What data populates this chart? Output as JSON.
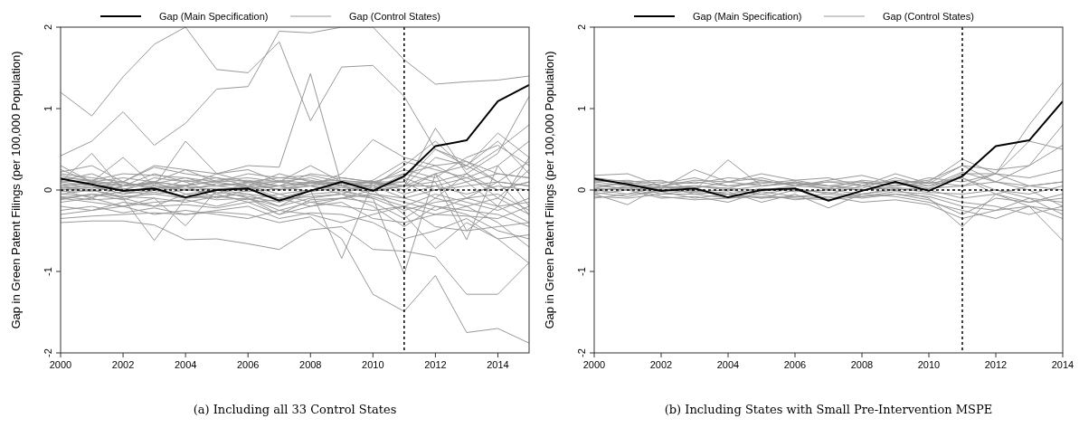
{
  "chart_data": [
    {
      "type": "line",
      "ylabel": "Gap in Green Patent Filings (per 100,000 Population)",
      "annotations": [
        "(a) Including all 33 Control States"
      ],
      "legend": "top",
      "line_style": "solid",
      "x": [
        2000,
        2001,
        2002,
        2003,
        2004,
        2005,
        2006,
        2007,
        2008,
        2009,
        2010,
        2011,
        2012,
        2013,
        2014,
        2015
      ],
      "xlim": [
        2000,
        2015
      ],
      "xticks": [
        2000,
        2002,
        2004,
        2006,
        2008,
        2010,
        2012,
        2014
      ],
      "ylim": [
        -2,
        2
      ],
      "yticks": [
        -2,
        -1,
        0,
        1,
        2
      ],
      "ref_lines": [
        {
          "axis": "x",
          "value": 2011,
          "line_style": "dotted",
          "color": "#000000"
        },
        {
          "axis": "y",
          "value": 0,
          "line_style": "dotted",
          "color": "#000000"
        }
      ],
      "series": [
        {
          "name": "Gap (Control States)",
          "color": "#999999",
          "values": [
            1.2,
            0.91,
            1.39,
            1.79,
            2.0,
            1.48,
            1.44,
            1.82,
            0.85,
            1.51,
            1.53,
            1.15,
            0.5,
            0.35,
            0.2,
            0.15
          ]
        },
        {
          "color": "#999999",
          "values": [
            0.42,
            0.6,
            0.96,
            0.55,
            0.82,
            1.24,
            1.27,
            1.95,
            1.93,
            2.0,
            2.0,
            1.6,
            1.3,
            1.33,
            1.35,
            1.4
          ]
        },
        {
          "color": "#999999",
          "values": [
            0.2,
            0.15,
            0.1,
            0.3,
            0.25,
            0.2,
            0.3,
            0.28,
            1.43,
            0.05,
            0.0,
            0.05,
            0.4,
            0.3,
            0.6,
            0.2
          ]
        },
        {
          "color": "#999999",
          "values": [
            0.3,
            0.1,
            0.4,
            0.05,
            0.6,
            0.2,
            0.1,
            0.1,
            0.05,
            0.2,
            0.62,
            0.4,
            0.3,
            0.1,
            -0.2,
            -0.4
          ]
        },
        {
          "color": "#999999",
          "values": [
            0.1,
            0.45,
            0.0,
            0.1,
            0.05,
            0.2,
            0.25,
            0.1,
            0.3,
            0.1,
            0.1,
            0.05,
            0.76,
            0.2,
            0.45,
            1.15
          ]
        },
        {
          "color": "#999999",
          "values": [
            -0.4,
            -0.38,
            -0.38,
            -0.43,
            -0.61,
            -0.6,
            -0.66,
            -0.73,
            -0.49,
            -0.45,
            -0.73,
            -0.75,
            -0.82,
            -1.28,
            -1.28,
            -0.89
          ]
        },
        {
          "color": "#999999",
          "values": [
            -0.35,
            -0.32,
            -0.3,
            -0.28,
            -0.3,
            -0.27,
            -0.3,
            -0.4,
            -0.33,
            -0.6,
            -1.28,
            -1.49,
            -1.05,
            -1.75,
            -1.7,
            -1.88
          ]
        },
        {
          "color": "#999999",
          "values": [
            -0.05,
            0.0,
            -0.1,
            -0.62,
            -0.1,
            0.0,
            0.05,
            -0.1,
            0.0,
            0.05,
            -0.05,
            -0.1,
            -0.2,
            -0.3,
            -0.5,
            -0.6
          ]
        },
        {
          "color": "#999999",
          "values": [
            0.0,
            -0.1,
            0.05,
            0.1,
            -0.05,
            0.0,
            -0.1,
            -0.2,
            0.0,
            -0.84,
            0.1,
            0.2,
            0.3,
            0.35,
            0.1,
            -0.3
          ]
        },
        {
          "color": "#999999",
          "values": [
            0.1,
            0.05,
            -0.05,
            0.0,
            0.05,
            -0.1,
            0.0,
            0.05,
            0.1,
            0.0,
            -0.1,
            -1.03,
            0.2,
            -0.5,
            -0.2,
            0.4
          ]
        },
        {
          "color": "#999999",
          "values": [
            -0.1,
            -0.15,
            -0.2,
            -0.1,
            -0.44,
            0.0,
            -0.05,
            -0.1,
            -0.2,
            -0.1,
            0.0,
            -0.3,
            -0.72,
            -0.4,
            -0.6,
            -0.55
          ]
        },
        {
          "color": "#999999",
          "values": [
            0.05,
            0.1,
            0.0,
            0.15,
            0.1,
            -0.05,
            0.1,
            0.0,
            0.05,
            0.1,
            0.0,
            0.2,
            0.1,
            -0.61,
            0.3,
            -0.2
          ]
        },
        {
          "color": "#999999",
          "values": [
            -0.2,
            -0.25,
            -0.15,
            -0.2,
            -0.18,
            -0.22,
            -0.15,
            -0.3,
            -0.2,
            -0.15,
            -0.35,
            -0.4,
            -0.3,
            -0.32,
            -0.35,
            -0.2
          ]
        },
        {
          "color": "#999999",
          "values": [
            0.15,
            0.12,
            0.2,
            0.18,
            0.15,
            0.1,
            0.2,
            0.15,
            0.18,
            0.1,
            0.05,
            0.3,
            0.6,
            0.25,
            0.5,
            0.8
          ]
        },
        {
          "color": "#999999",
          "values": [
            -0.1,
            -0.05,
            -0.12,
            0.0,
            -0.1,
            -0.05,
            -0.15,
            -0.12,
            -0.08,
            -0.05,
            -0.1,
            -0.25,
            -0.15,
            -0.1,
            -0.05,
            -0.25
          ]
        },
        {
          "color": "#999999",
          "values": [
            0.05,
            0.0,
            0.08,
            0.05,
            0.02,
            0.05,
            0.0,
            0.1,
            0.05,
            0.0,
            0.05,
            -0.1,
            0.0,
            0.05,
            0.1,
            0.05
          ]
        },
        {
          "color": "#999999",
          "values": [
            -0.05,
            -0.08,
            -0.02,
            -0.05,
            -0.1,
            -0.08,
            -0.05,
            -0.2,
            -0.1,
            -0.05,
            -0.2,
            -0.45,
            -0.2,
            -0.25,
            -0.3,
            -0.45
          ]
        },
        {
          "color": "#999999",
          "values": [
            0.02,
            0.05,
            -0.05,
            0.05,
            0.0,
            0.08,
            0.05,
            -0.05,
            0.0,
            0.08,
            0.05,
            0.1,
            -0.1,
            0.2,
            0.0,
            0.1
          ]
        },
        {
          "color": "#999999",
          "values": [
            0.25,
            0.1,
            0.05,
            0.2,
            0.1,
            0.15,
            0.05,
            0.2,
            0.1,
            0.12,
            0.08,
            0.25,
            0.15,
            0.4,
            0.55,
            0.3
          ]
        },
        {
          "color": "#999999",
          "values": [
            -0.15,
            -0.1,
            -0.2,
            -0.15,
            -0.12,
            -0.2,
            -0.1,
            -0.25,
            -0.15,
            -0.2,
            -0.25,
            -0.2,
            -0.3,
            -0.2,
            -0.1,
            -0.3
          ]
        },
        {
          "color": "#999999",
          "values": [
            0.08,
            0.02,
            0.1,
            0.0,
            0.12,
            0.05,
            0.08,
            0.0,
            0.1,
            0.05,
            0.1,
            0.0,
            0.2,
            0.3,
            0.1,
            0.05
          ]
        },
        {
          "color": "#999999",
          "values": [
            -0.02,
            0.0,
            -0.08,
            -0.05,
            0.0,
            -0.03,
            -0.08,
            -0.15,
            -0.05,
            -0.02,
            -0.08,
            -0.2,
            -0.05,
            -0.15,
            -0.25,
            -0.1
          ]
        },
        {
          "color": "#999999",
          "values": [
            0.12,
            0.2,
            0.05,
            0.1,
            0.25,
            0.1,
            0.12,
            0.05,
            0.08,
            0.15,
            0.1,
            0.05,
            0.2,
            -0.1,
            0.1,
            0.35
          ]
        },
        {
          "color": "#999999",
          "values": [
            -0.08,
            -0.12,
            -0.1,
            -0.2,
            -0.05,
            -0.12,
            -0.1,
            -0.3,
            -0.12,
            -0.1,
            -0.15,
            -0.35,
            -0.1,
            -0.2,
            -0.4,
            -0.7
          ]
        },
        {
          "color": "#999999",
          "values": [
            0.0,
            0.03,
            0.02,
            -0.03,
            0.05,
            0.0,
            0.03,
            0.05,
            -0.02,
            0.03,
            -0.02,
            0.05,
            0.05,
            -0.05,
            0.05,
            0.0
          ]
        },
        {
          "color": "#999999",
          "values": [
            0.18,
            0.1,
            0.15,
            0.1,
            0.05,
            0.12,
            0.15,
            0.1,
            0.15,
            0.05,
            0.12,
            0.35,
            0.25,
            0.15,
            0.3,
            0.6
          ]
        },
        {
          "color": "#999999",
          "values": [
            -0.25,
            -0.2,
            -0.28,
            -0.22,
            -0.3,
            -0.25,
            -0.2,
            -0.35,
            -0.28,
            -0.3,
            -0.4,
            -0.6,
            -0.5,
            -0.35,
            -0.6,
            -0.9
          ]
        },
        {
          "color": "#999999",
          "values": [
            0.05,
            0.08,
            0.1,
            0.02,
            0.06,
            0.1,
            0.04,
            0.12,
            0.08,
            0.1,
            0.02,
            0.15,
            0.0,
            0.1,
            0.2,
            0.15
          ]
        },
        {
          "color": "#999999",
          "values": [
            -0.12,
            -0.05,
            -0.08,
            -0.1,
            -0.15,
            -0.08,
            -0.12,
            -0.05,
            -0.15,
            -0.1,
            -0.05,
            -0.15,
            -0.25,
            -0.1,
            -0.2,
            -0.15
          ]
        },
        {
          "color": "#999999",
          "values": [
            0.03,
            -0.02,
            0.05,
            0.08,
            0.0,
            0.02,
            -0.02,
            0.02,
            0.05,
            -0.05,
            0.08,
            0.05,
            0.1,
            0.2,
            -0.1,
            0.25
          ]
        },
        {
          "color": "#999999",
          "values": [
            0.22,
            0.3,
            0.1,
            0.28,
            0.2,
            0.15,
            0.1,
            0.05,
            0.2,
            0.15,
            0.1,
            0.1,
            0.5,
            0.3,
            0.7,
            0.4
          ]
        },
        {
          "color": "#999999",
          "values": [
            -0.3,
            -0.25,
            -0.2,
            -0.3,
            -0.25,
            -0.3,
            -0.35,
            -0.25,
            -0.3,
            -0.4,
            -0.3,
            -0.2,
            -0.45,
            -0.5,
            -0.45,
            -0.4
          ]
        },
        {
          "color": "#999999",
          "values": [
            0.1,
            0.12,
            0.05,
            0.08,
            0.15,
            0.05,
            0.1,
            0.15,
            0.12,
            0.05,
            0.1,
            -0.05,
            0.05,
            0.15,
            0.0,
            0.1
          ]
        },
        {
          "name": "Gap (Main Specification)",
          "color": "#000000",
          "values": [
            0.14,
            0.07,
            -0.01,
            0.02,
            -0.09,
            0.0,
            0.02,
            -0.13,
            -0.01,
            0.1,
            -0.01,
            0.17,
            0.54,
            0.61,
            1.09,
            1.29
          ]
        }
      ]
    },
    {
      "type": "line",
      "ylabel": "Gap in Green Patent Filings (per 100,000 Population)",
      "annotations": [
        "(b) Including States with Small Pre-Intervention MSPE"
      ],
      "legend": "top",
      "line_style": "solid",
      "x": [
        2000,
        2001,
        2002,
        2003,
        2004,
        2005,
        2006,
        2007,
        2008,
        2009,
        2010,
        2011,
        2012,
        2013,
        2014
      ],
      "xlim": [
        2000,
        2014
      ],
      "xticks": [
        2000,
        2002,
        2004,
        2006,
        2008,
        2010,
        2012,
        2014
      ],
      "ylim": [
        -2,
        2
      ],
      "yticks": [
        -2,
        -1,
        0,
        1,
        2
      ],
      "ref_lines": [
        {
          "axis": "x",
          "value": 2011,
          "line_style": "dotted",
          "color": "#000000"
        },
        {
          "axis": "y",
          "value": 0,
          "line_style": "dotted",
          "color": "#000000"
        }
      ],
      "series": [
        {
          "name": "Gap (Control States)",
          "color": "#999999",
          "values": [
            0.18,
            0.2,
            0.05,
            0.1,
            0.05,
            0.1,
            0.08,
            0.05,
            0.1,
            0.05,
            0.1,
            0.38,
            0.2,
            0.8,
            1.32
          ]
        },
        {
          "color": "#999999",
          "values": [
            0.1,
            0.05,
            0.02,
            0.25,
            0.1,
            0.2,
            0.12,
            0.15,
            0.05,
            0.2,
            0.08,
            0.3,
            0.25,
            0.3,
            0.8
          ]
        },
        {
          "color": "#999999",
          "values": [
            0.02,
            0.1,
            0.12,
            0.0,
            0.37,
            0.05,
            0.1,
            0.0,
            0.08,
            0.1,
            0.02,
            0.2,
            0.2,
            0.6,
            0.5
          ]
        },
        {
          "color": "#999999",
          "values": [
            -0.05,
            -0.18,
            0.05,
            -0.05,
            -0.02,
            -0.15,
            -0.05,
            -0.22,
            -0.05,
            0.0,
            -0.1,
            -0.45,
            -0.05,
            -0.2,
            -0.62
          ]
        },
        {
          "color": "#999999",
          "values": [
            0.0,
            0.03,
            -0.08,
            -0.12,
            -0.1,
            -0.05,
            -0.12,
            -0.08,
            -0.15,
            -0.12,
            -0.18,
            -0.35,
            -0.25,
            -0.2,
            -0.35
          ]
        },
        {
          "color": "#999999",
          "values": [
            0.05,
            0.08,
            0.0,
            0.05,
            0.02,
            0.12,
            0.05,
            0.1,
            0.1,
            0.05,
            0.1,
            0.05,
            0.1,
            0.3,
            0.55
          ]
        },
        {
          "color": "#999999",
          "values": [
            -0.1,
            -0.05,
            -0.02,
            -0.1,
            -0.05,
            -0.1,
            -0.08,
            -0.05,
            -0.1,
            -0.05,
            -0.12,
            -0.3,
            -0.1,
            -0.15,
            -0.1
          ]
        },
        {
          "color": "#999999",
          "values": [
            0.08,
            0.0,
            0.05,
            0.02,
            0.1,
            0.15,
            0.05,
            0.12,
            0.18,
            0.08,
            0.05,
            0.22,
            0.1,
            0.0,
            -0.2
          ]
        },
        {
          "color": "#999999",
          "values": [
            0.15,
            0.1,
            0.02,
            0.05,
            0.0,
            0.05,
            0.1,
            0.05,
            0.02,
            0.15,
            0.05,
            0.15,
            -0.05,
            0.05,
            0.1
          ]
        },
        {
          "color": "#999999",
          "values": [
            -0.02,
            0.05,
            -0.05,
            0.0,
            -0.05,
            0.02,
            -0.02,
            0.0,
            -0.05,
            0.02,
            -0.03,
            -0.05,
            0.0,
            -0.05,
            0.05
          ]
        },
        {
          "color": "#999999",
          "values": [
            0.05,
            0.02,
            0.08,
            0.15,
            0.05,
            0.08,
            0.12,
            0.05,
            0.0,
            0.05,
            0.15,
            0.1,
            0.2,
            0.15,
            0.25
          ]
        },
        {
          "color": "#999999",
          "values": [
            -0.08,
            -0.1,
            -0.05,
            -0.05,
            -0.1,
            -0.08,
            -0.1,
            -0.12,
            -0.08,
            -0.05,
            -0.08,
            -0.2,
            -0.25,
            -0.1,
            -0.15
          ]
        },
        {
          "color": "#999999",
          "values": [
            0.12,
            0.08,
            0.1,
            0.08,
            0.15,
            0.12,
            0.05,
            0.1,
            0.05,
            0.12,
            0.08,
            0.15,
            0.0,
            -0.1,
            -0.3
          ]
        },
        {
          "color": "#999999",
          "values": [
            0.0,
            -0.05,
            0.05,
            -0.02,
            0.0,
            -0.05,
            0.02,
            -0.05,
            0.05,
            0.0,
            0.02,
            0.05,
            0.2,
            0.05,
            0.0
          ]
        },
        {
          "color": "#999999",
          "values": [
            -0.05,
            0.0,
            -0.1,
            -0.08,
            -0.15,
            -0.02,
            -0.08,
            -0.1,
            -0.05,
            -0.08,
            -0.15,
            -0.25,
            -0.35,
            -0.2,
            -0.25
          ]
        },
        {
          "color": "#999999",
          "values": [
            0.1,
            0.12,
            0.05,
            0.12,
            0.1,
            0.05,
            0.08,
            0.02,
            0.12,
            0.08,
            0.12,
            0.3,
            0.1,
            0.05,
            0.1
          ]
        },
        {
          "color": "#999999",
          "values": [
            0.02,
            0.0,
            0.03,
            0.05,
            0.02,
            0.0,
            0.05,
            0.02,
            0.0,
            0.03,
            0.0,
            -0.1,
            -0.05,
            -0.15,
            -0.05
          ]
        },
        {
          "color": "#999999",
          "values": [
            -0.03,
            -0.08,
            0.0,
            -0.03,
            -0.05,
            -0.1,
            0.0,
            -0.03,
            -0.08,
            -0.02,
            -0.05,
            -0.15,
            -0.2,
            -0.3,
            -0.2
          ]
        },
        {
          "name": "Gap (Main Specification)",
          "color": "#000000",
          "values": [
            0.14,
            0.07,
            -0.01,
            0.02,
            -0.09,
            0.0,
            0.02,
            -0.13,
            -0.01,
            0.1,
            -0.01,
            0.17,
            0.54,
            0.61,
            1.09
          ]
        }
      ]
    }
  ]
}
